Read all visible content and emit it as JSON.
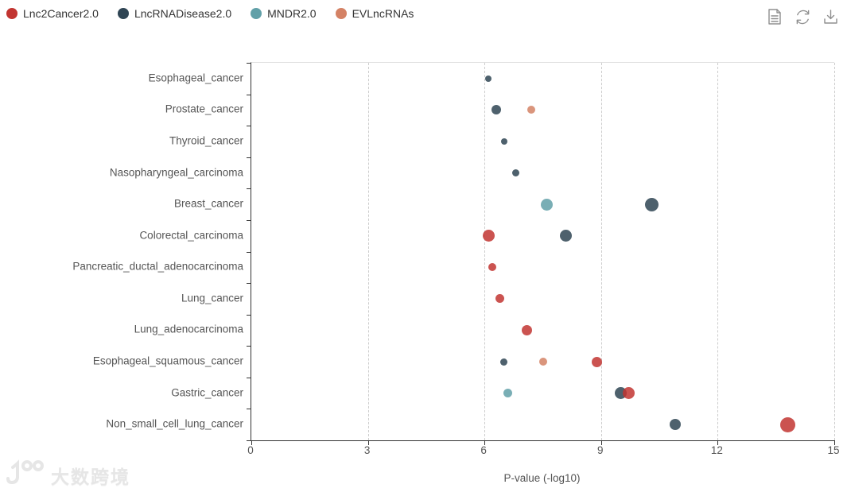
{
  "legend": {
    "items": [
      {
        "label": "Lnc2Cancer2.0",
        "color": "#c23531"
      },
      {
        "label": "LncRNADisease2.0",
        "color": "#2f4554"
      },
      {
        "label": "MNDR2.0",
        "color": "#61a0a8"
      },
      {
        "label": "EVLncRNAs",
        "color": "#d48265"
      }
    ]
  },
  "toolbar": {
    "icons": [
      {
        "name": "data-view-icon"
      },
      {
        "name": "refresh-icon"
      },
      {
        "name": "download-icon"
      }
    ]
  },
  "chart_data": {
    "type": "scatter",
    "title": "",
    "xlabel": "P-value (-log10)",
    "ylabel": "",
    "xlim": [
      0,
      15
    ],
    "x_ticks": [
      0,
      3,
      6,
      9,
      12,
      15
    ],
    "grid": "vertical-dashed",
    "legend_position": "top-left",
    "categories": [
      "Esophageal_cancer",
      "Prostate_cancer",
      "Thyroid_cancer",
      "Nasopharyngeal_carcinoma",
      "Breast_cancer",
      "Colorectal_carcinoma",
      "Pancreatic_ductal_adenocarcinoma",
      "Lung_cancer",
      "Lung_adenocarcinoma",
      "Esophageal_squamous_cancer",
      "Gastric_cancer",
      "Non_small_cell_lung_cancer"
    ],
    "series": [
      {
        "name": "LncRNADisease2.0",
        "color": "#2f4554",
        "points": [
          {
            "category": "Esophageal_cancer",
            "x": 6.1,
            "size": 8
          },
          {
            "category": "Prostate_cancer",
            "x": 6.3,
            "size": 12
          },
          {
            "category": "Thyroid_cancer",
            "x": 6.5,
            "size": 8
          },
          {
            "category": "Nasopharyngeal_carcinoma",
            "x": 6.8,
            "size": 9
          },
          {
            "category": "Breast_cancer",
            "x": 10.3,
            "size": 17
          },
          {
            "category": "Colorectal_carcinoma",
            "x": 8.1,
            "size": 15
          },
          {
            "category": "Esophageal_squamous_cancer",
            "x": 6.5,
            "size": 9
          },
          {
            "category": "Gastric_cancer",
            "x": 9.5,
            "size": 15
          },
          {
            "category": "Non_small_cell_lung_cancer",
            "x": 10.9,
            "size": 14
          }
        ]
      },
      {
        "name": "MNDR2.0",
        "color": "#61a0a8",
        "points": [
          {
            "category": "Breast_cancer",
            "x": 7.6,
            "size": 15
          },
          {
            "category": "Gastric_cancer",
            "x": 6.6,
            "size": 11
          }
        ]
      },
      {
        "name": "EVLncRNAs",
        "color": "#d48265",
        "points": [
          {
            "category": "Prostate_cancer",
            "x": 7.2,
            "size": 10
          },
          {
            "category": "Esophageal_squamous_cancer",
            "x": 7.5,
            "size": 10
          }
        ]
      },
      {
        "name": "Lnc2Cancer2.0",
        "color": "#c23531",
        "points": [
          {
            "category": "Colorectal_carcinoma",
            "x": 6.1,
            "size": 15
          },
          {
            "category": "Pancreatic_ductal_adenocarcinoma",
            "x": 6.2,
            "size": 10
          },
          {
            "category": "Lung_cancer",
            "x": 6.4,
            "size": 11
          },
          {
            "category": "Lung_adenocarcinoma",
            "x": 7.1,
            "size": 13
          },
          {
            "category": "Esophageal_squamous_cancer",
            "x": 8.9,
            "size": 13
          },
          {
            "category": "Gastric_cancer",
            "x": 9.7,
            "size": 15
          },
          {
            "category": "Non_small_cell_lung_cancer",
            "x": 13.8,
            "size": 19
          }
        ]
      }
    ]
  },
  "watermark": {
    "logo": "100",
    "text": "大数跨境"
  }
}
